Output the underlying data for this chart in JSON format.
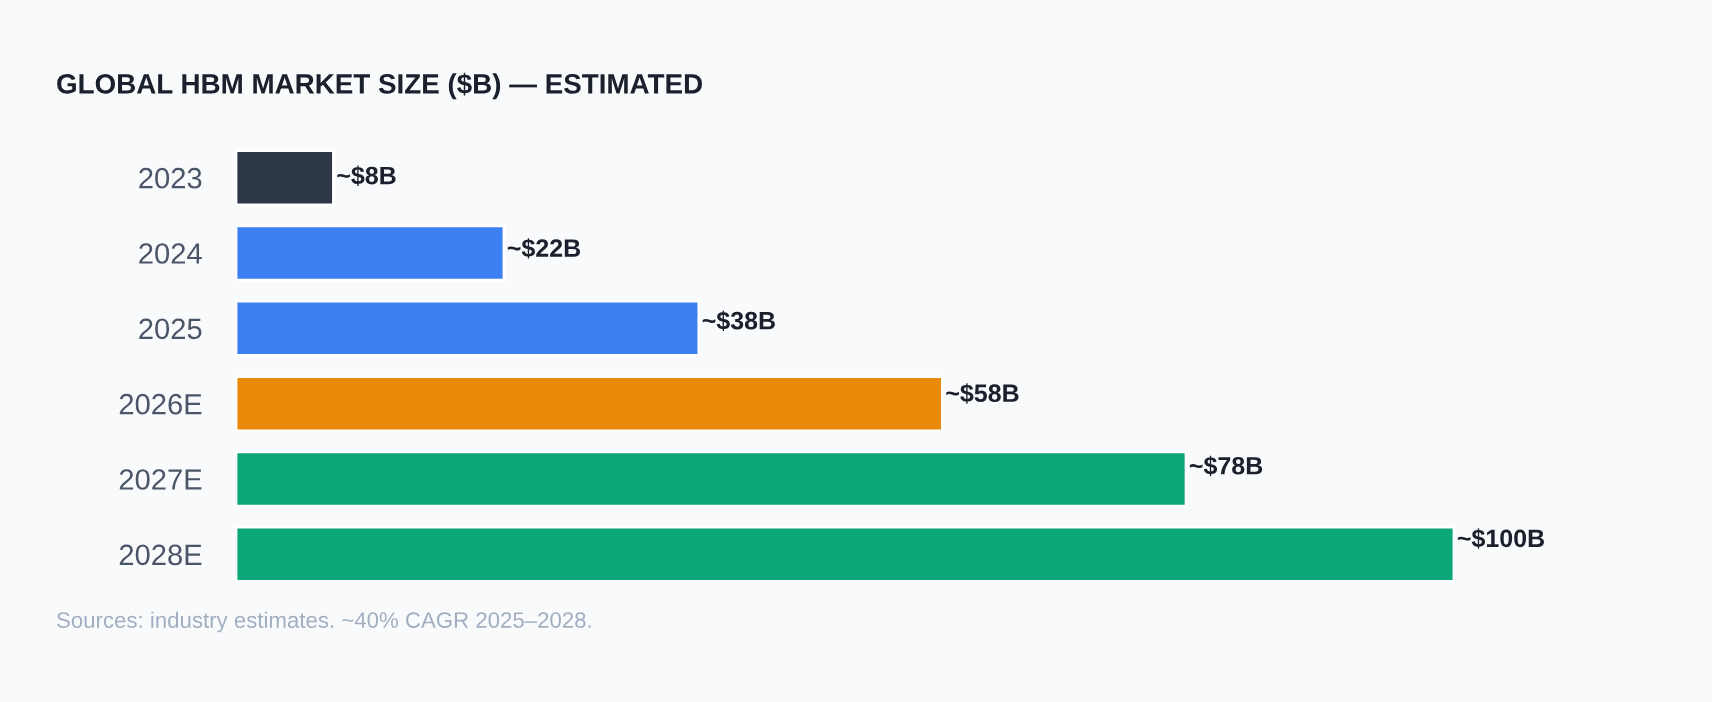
{
  "chart_data": {
    "type": "bar",
    "orientation": "horizontal",
    "title": "GLOBAL HBM MARKET SIZE ($B) — ESTIMATED",
    "categories": [
      "2023",
      "2024",
      "2025",
      "2026E",
      "2027E",
      "2028E"
    ],
    "values": [
      8,
      22,
      38,
      58,
      78,
      100
    ],
    "colors": [
      "#2d3748",
      "#3b7ff0",
      "#3b7ff0",
      "#ea8a0a",
      "#0ca678",
      "#0ca678"
    ],
    "value_labels": [
      "~$8B",
      "~$22B",
      "~$38B",
      "~$58B",
      "~$78B",
      "~$100B"
    ],
    "xlim": [
      0,
      100
    ],
    "tick_labels": "y",
    "grid": false,
    "legend": false,
    "annotations": [
      "Sources: industry estimates. ~40% CAGR 2025–2028."
    ]
  }
}
